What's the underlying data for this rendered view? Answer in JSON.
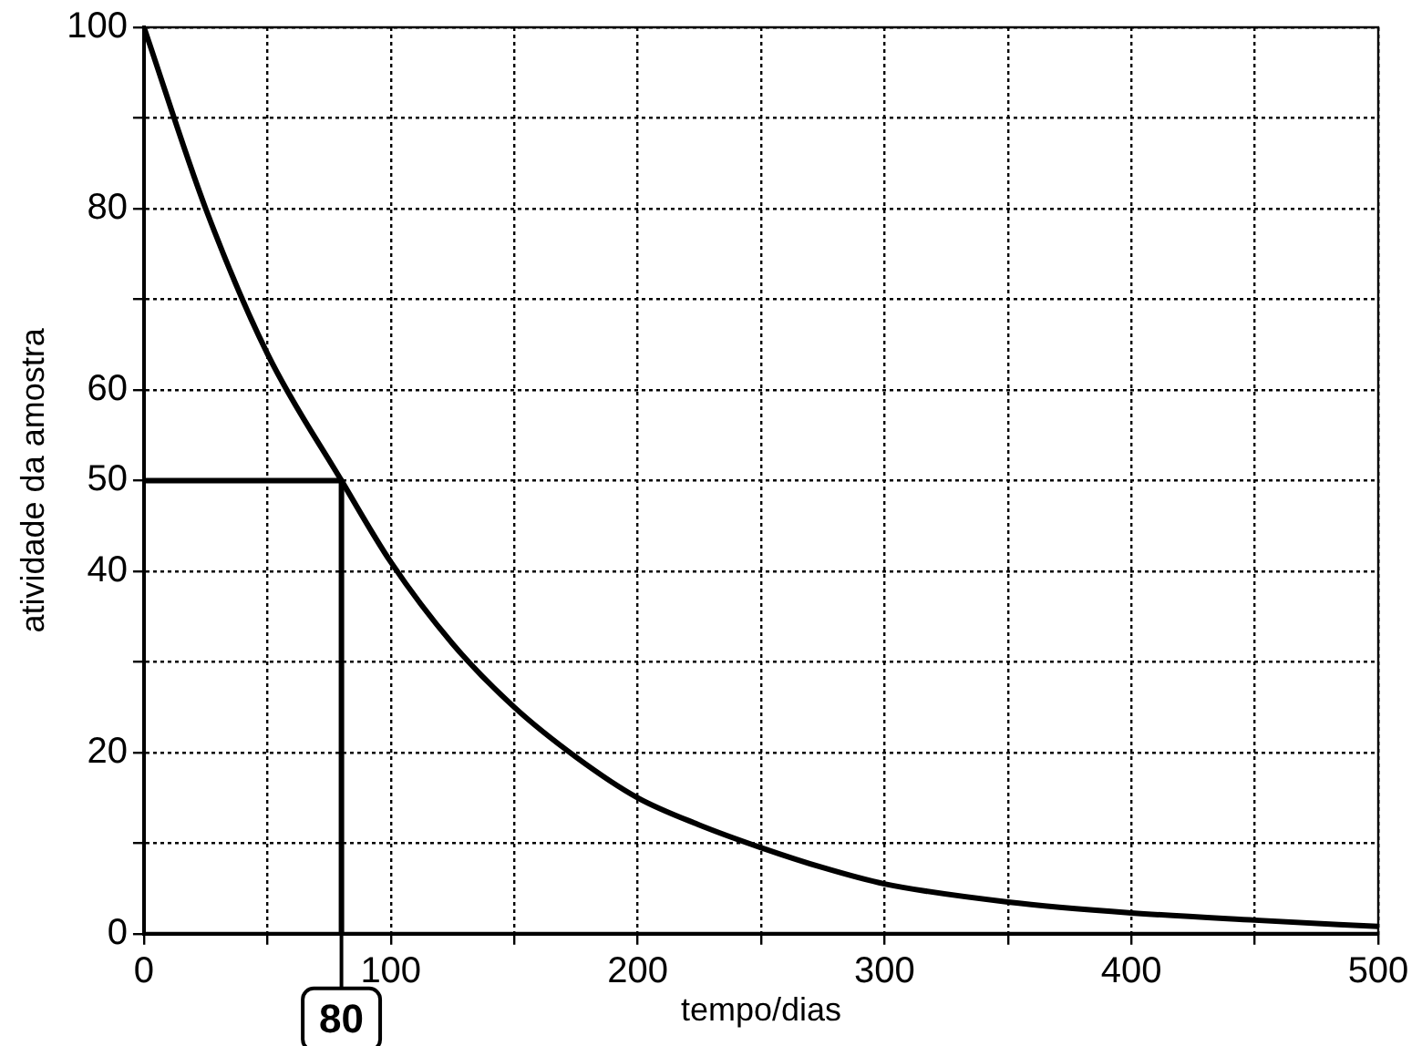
{
  "chart_data": {
    "type": "line",
    "xlabel": "tempo/dias",
    "ylabel": "atividade da amostra",
    "xlim": [
      0,
      500
    ],
    "xticks": [
      0,
      {
        "value": 50,
        "label": null
      },
      100,
      {
        "value": 150,
        "label": null
      },
      200,
      {
        "value": 250,
        "label": null
      },
      300,
      {
        "value": 350,
        "label": null
      },
      400,
      {
        "value": 450,
        "label": null
      },
      500
    ],
    "ylim": [
      0,
      100
    ],
    "yticks": [
      0,
      {
        "value": 10,
        "label": null
      },
      20,
      {
        "value": 30,
        "label": null
      },
      40,
      50,
      60,
      {
        "value": 70,
        "label": null
      },
      80,
      {
        "value": 90,
        "label": null
      },
      100
    ],
    "grid": true,
    "marker": "none",
    "line_style": "solid",
    "legend": false,
    "series": [
      {
        "color": "#000000",
        "x": [
          0,
          25,
          50,
          80,
          100,
          125,
          150,
          175,
          200,
          225,
          250,
          275,
          300,
          350,
          400,
          450,
          500
        ],
        "values": [
          100,
          80,
          64,
          50,
          41,
          32,
          25,
          19.5,
          15,
          12,
          9.5,
          7.3,
          5.5,
          3.5,
          2.3,
          1.5,
          0.8
        ]
      },
      {
        "color": "#000000",
        "x": [
          0,
          80,
          80
        ],
        "values": [
          50,
          50,
          0
        ]
      }
    ],
    "annotations": [
      {
        "text": "80",
        "x": 80,
        "y": 0
      }
    ]
  }
}
